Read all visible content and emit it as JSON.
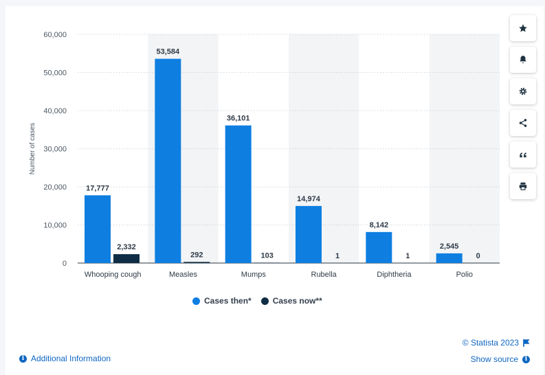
{
  "chart_data": {
    "type": "bar",
    "title": "",
    "xlabel": "",
    "ylabel": "Number of cases",
    "ylim": [
      0,
      60000
    ],
    "yticks": [
      "0",
      "10,000",
      "20,000",
      "30,000",
      "40,000",
      "50,000",
      "60,000"
    ],
    "ytick_values": [
      0,
      10000,
      20000,
      30000,
      40000,
      50000,
      60000
    ],
    "categories": [
      "Whooping cough",
      "Measles",
      "Mumps",
      "Rubella",
      "Diphtheria",
      "Polio"
    ],
    "series": [
      {
        "name": "Cases then*",
        "color": "#0e7fe1",
        "values": [
          17777,
          53584,
          36101,
          14974,
          8142,
          2545
        ],
        "labels": [
          "17,777",
          "53,584",
          "36,101",
          "14,974",
          "8,142",
          "2,545"
        ]
      },
      {
        "name": "Cases now**",
        "color": "#0f2e45",
        "values": [
          2332,
          292,
          103,
          1,
          1,
          0
        ],
        "labels": [
          "2,332",
          "292",
          "103",
          "1",
          "1",
          "0"
        ]
      }
    ],
    "grid": true,
    "legend_position": "bottom"
  },
  "footer": {
    "copyright": "© Statista 2023",
    "show_source": "Show source",
    "additional_info": "Additional Information"
  },
  "toolbar": [
    {
      "icon": "star-icon",
      "glyph": "★"
    },
    {
      "icon": "bell-icon",
      "glyph": "🔔"
    },
    {
      "icon": "gear-icon",
      "glyph": "⚙"
    },
    {
      "icon": "share-icon",
      "glyph": "⋖"
    },
    {
      "icon": "quote-icon",
      "glyph": "❝"
    },
    {
      "icon": "print-icon",
      "glyph": "⎙"
    }
  ]
}
